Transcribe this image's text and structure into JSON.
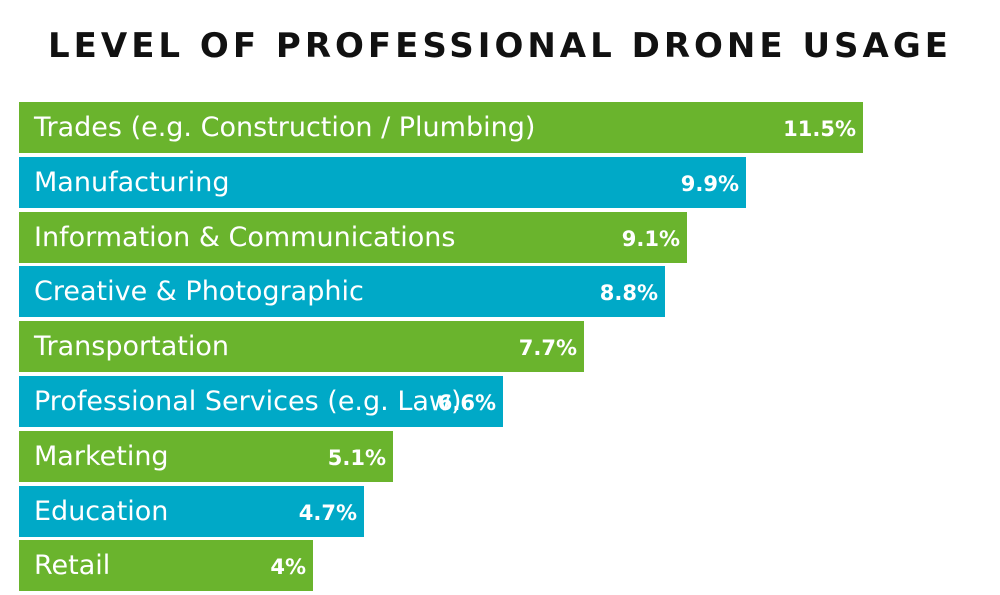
{
  "chart_data": {
    "type": "bar",
    "orientation": "horizontal",
    "title": "LEVEL OF PROFESSIONAL DRONE USAGE",
    "categories": [
      "Trades (e.g. Construction / Plumbing)",
      "Manufacturing",
      "Information & Communications",
      "Creative & Photographic",
      "Transportation",
      "Professional Services (e.g. Law)",
      "Marketing",
      "Education",
      "Retail"
    ],
    "values": [
      11.5,
      9.9,
      9.1,
      8.8,
      7.7,
      6.6,
      5.1,
      4.7,
      4
    ],
    "value_labels": [
      "11.5%",
      "9.9%",
      "9.1%",
      "8.8%",
      "7.7%",
      "6.6%",
      "5.1%",
      "4.7%",
      "4%"
    ],
    "unit": "%",
    "colors": [
      "#6ab42d",
      "#00a9c7"
    ],
    "axes_visible": false,
    "grid": false
  }
}
